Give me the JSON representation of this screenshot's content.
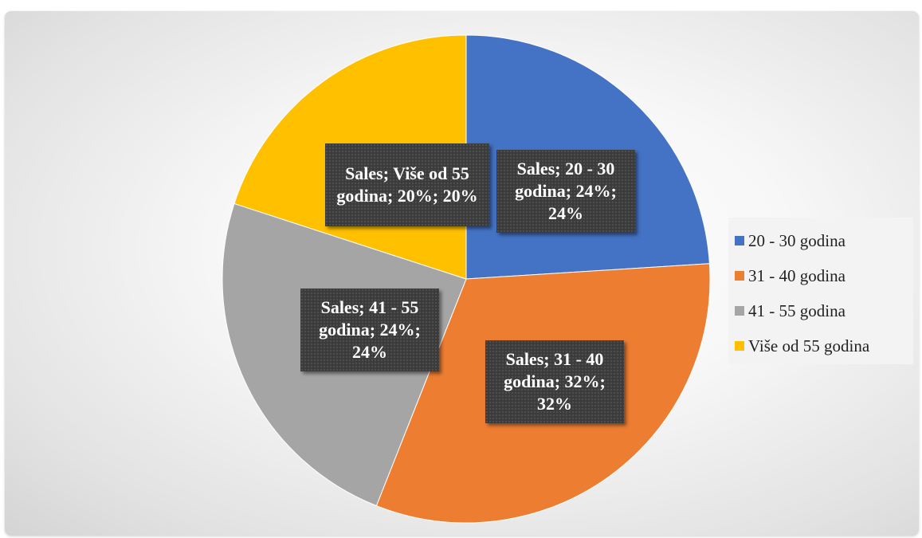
{
  "chart_data": {
    "type": "pie",
    "series_name": "Sales",
    "categories": [
      "20 - 30 godina",
      "31 - 40 godina",
      "41 - 55 godina",
      "Više od 55 godina"
    ],
    "values": [
      24,
      32,
      24,
      20
    ],
    "colors": [
      "#4472C4",
      "#ED7D31",
      "#A5A5A5",
      "#FFC000"
    ],
    "data_labels": [
      "Sales; 20 - 30 godina; 24%; 24%",
      "Sales; 31 - 40 godina; 32%; 32%",
      "Sales; 41 - 55 godina; 24%; 24%",
      "Sales; Više od 55 godina; 20%; 20%"
    ],
    "legend_position": "right",
    "start_angle": "12 o'clock",
    "direction": "clockwise"
  }
}
